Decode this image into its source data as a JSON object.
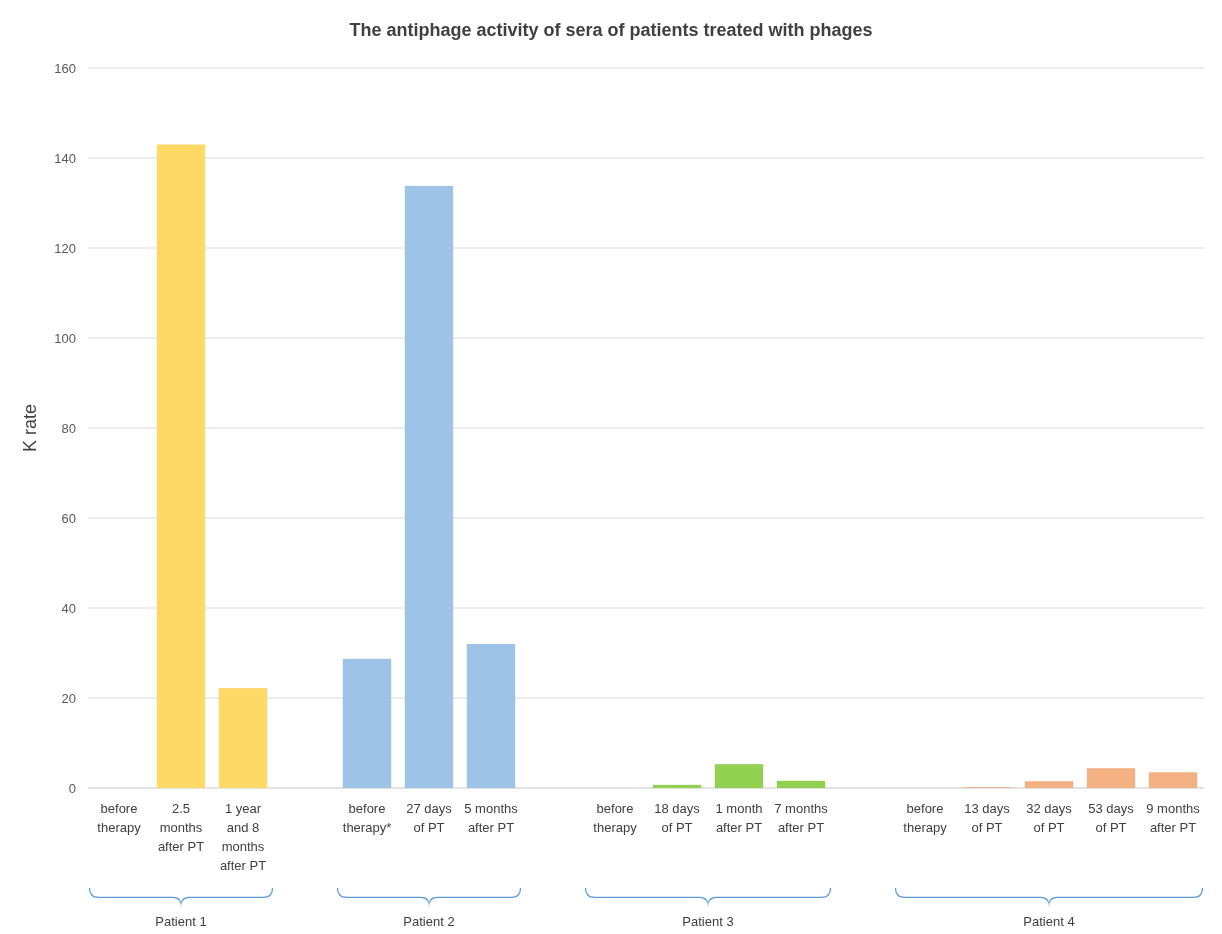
{
  "chart_data": {
    "type": "bar",
    "title": "The antiphage activity of sera of patients treated with phages",
    "ylabel": "K rate",
    "categories": [
      "before therapy",
      "2.5 months after PT",
      "1 year and 8 months after PT",
      null,
      "before therapy*",
      "27 days of PT",
      "5 months after PT",
      null,
      "before therapy",
      "18 days of PT",
      "1 month after PT",
      "7 months after PT",
      null,
      "before therapy",
      "13 days of PT",
      "32 days of PT",
      "53 days of PT",
      "9 months after PT"
    ],
    "values": [
      0,
      143,
      22.2,
      null,
      28.7,
      133.8,
      32,
      null,
      0,
      0.7,
      5.3,
      1.6,
      null,
      0,
      0.2,
      1.5,
      4.4,
      3.5
    ],
    "colors": [
      "#ffd966",
      "#ffd966",
      "#ffd966",
      null,
      "#9dc3e6",
      "#9dc3e6",
      "#9dc3e6",
      null,
      "#92d050",
      "#92d050",
      "#92d050",
      "#92d050",
      null,
      "#f4b183",
      "#f4b183",
      "#f4b183",
      "#f4b183",
      "#f4b183"
    ],
    "ylim": [
      0,
      160
    ],
    "yticks": [
      0,
      20,
      40,
      60,
      80,
      100,
      120,
      140,
      160
    ],
    "grid": "y",
    "annotations": [
      "Patient 1",
      "Patient 2",
      "Patient 3",
      "Patient 4"
    ]
  }
}
